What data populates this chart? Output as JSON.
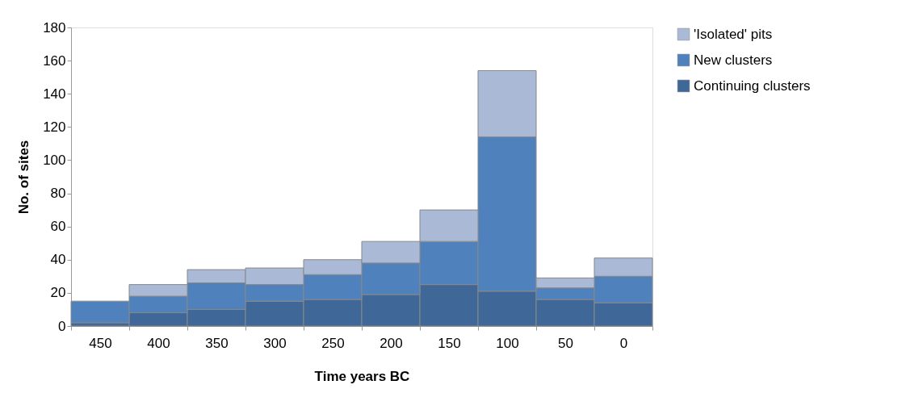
{
  "chart_data": {
    "type": "bar",
    "stacked": true,
    "xlabel": "Time years BC",
    "ylabel": "No. of sites",
    "categories": [
      "450",
      "400",
      "350",
      "300",
      "250",
      "200",
      "150",
      "100",
      "50",
      "0"
    ],
    "series": [
      {
        "name": "Continuing clusters",
        "color": "#3f6899",
        "values": [
          2,
          8,
          10,
          15,
          16,
          19,
          25,
          21,
          16,
          14
        ]
      },
      {
        "name": "New clusters",
        "color": "#4f81bd",
        "values": [
          13,
          10,
          16,
          10,
          15,
          19,
          26,
          93,
          7,
          16
        ]
      },
      {
        "name": "'Isolated' pits",
        "color": "#aab9d6",
        "values": [
          0,
          7,
          8,
          10,
          9,
          13,
          19,
          40,
          6,
          11
        ]
      }
    ],
    "ylim": [
      0,
      180
    ],
    "yticks": [
      0,
      20,
      40,
      60,
      80,
      100,
      120,
      140,
      160,
      180
    ],
    "grid": false,
    "legend": "right"
  }
}
